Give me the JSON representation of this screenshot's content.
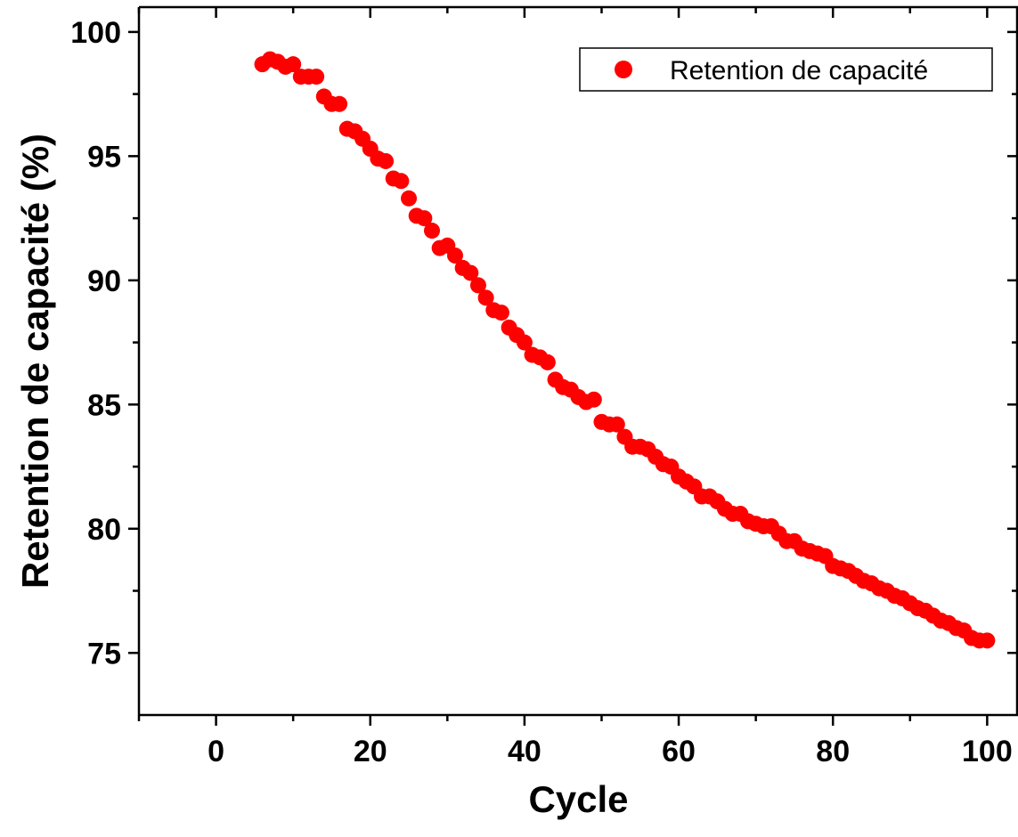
{
  "chart_data": {
    "type": "scatter",
    "title": "",
    "xlabel": "Cycle",
    "ylabel": "Retention de capacité (%)",
    "xlim": [
      -10,
      104
    ],
    "ylim": [
      72.5,
      101
    ],
    "xticks": [
      0,
      20,
      40,
      60,
      80,
      100
    ],
    "yticks": [
      75,
      80,
      85,
      90,
      95,
      100
    ],
    "grid": false,
    "legend": "top-right",
    "series": [
      {
        "name": "Retention de capacité",
        "color": "#ff0000",
        "marker": "circle",
        "x": [
          6,
          7,
          8,
          9,
          10,
          11,
          12,
          13,
          14,
          15,
          16,
          17,
          18,
          19,
          20,
          21,
          22,
          23,
          24,
          25,
          26,
          27,
          28,
          29,
          30,
          31,
          32,
          33,
          34,
          35,
          36,
          37,
          38,
          39,
          40,
          41,
          42,
          43,
          44,
          45,
          46,
          47,
          48,
          49,
          50,
          51,
          52,
          53,
          54,
          55,
          56,
          57,
          58,
          59,
          60,
          61,
          62,
          63,
          64,
          65,
          66,
          67,
          68,
          69,
          70,
          71,
          72,
          73,
          74,
          75,
          76,
          77,
          78,
          79,
          80,
          81,
          82,
          83,
          84,
          85,
          86,
          87,
          88,
          89,
          90,
          91,
          92,
          93,
          94,
          95,
          96,
          97,
          98,
          99,
          100
        ],
        "y": [
          98.7,
          98.9,
          98.8,
          98.6,
          98.7,
          98.2,
          98.2,
          98.2,
          97.4,
          97.1,
          97.1,
          96.1,
          96.0,
          95.7,
          95.3,
          94.9,
          94.8,
          94.1,
          94.0,
          93.3,
          92.6,
          92.5,
          92.0,
          91.3,
          91.4,
          91.0,
          90.5,
          90.3,
          89.8,
          89.3,
          88.8,
          88.7,
          88.1,
          87.8,
          87.5,
          87.0,
          86.9,
          86.7,
          86.0,
          85.7,
          85.6,
          85.3,
          85.1,
          85.2,
          84.3,
          84.2,
          84.2,
          83.7,
          83.3,
          83.3,
          83.2,
          82.9,
          82.6,
          82.5,
          82.1,
          81.9,
          81.7,
          81.3,
          81.3,
          81.1,
          80.8,
          80.6,
          80.6,
          80.3,
          80.2,
          80.1,
          80.1,
          79.8,
          79.5,
          79.5,
          79.2,
          79.1,
          79.0,
          78.9,
          78.5,
          78.4,
          78.3,
          78.1,
          77.9,
          77.8,
          77.6,
          77.5,
          77.3,
          77.2,
          77.0,
          76.8,
          76.7,
          76.5,
          76.3,
          76.2,
          76.0,
          75.9,
          75.6,
          75.5,
          75.5
        ]
      }
    ]
  }
}
